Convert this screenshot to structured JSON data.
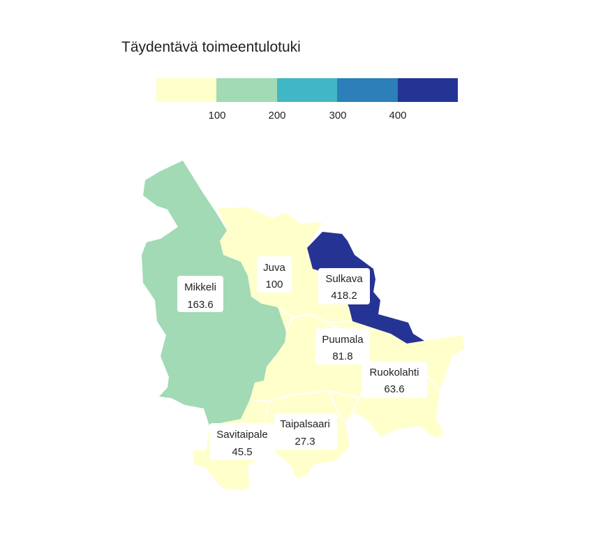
{
  "title": "Täydentävä toimeentulotuki",
  "legend": {
    "colors": [
      "#ffffcc",
      "#a1dab4",
      "#41b6c4",
      "#2c7fb8",
      "#253494"
    ],
    "ticks": [
      "100",
      "200",
      "300",
      "400"
    ]
  },
  "regions": [
    {
      "name": "Mikkeli",
      "value": "163.6",
      "color": "#a1dab4"
    },
    {
      "name": "Juva",
      "value": "100",
      "color": "#ffffcc"
    },
    {
      "name": "Sulkava",
      "value": "418.2",
      "color": "#253494"
    },
    {
      "name": "Puumala",
      "value": "81.8",
      "color": "#ffffcc"
    },
    {
      "name": "Ruokolahti",
      "value": "63.6",
      "color": "#ffffcc"
    },
    {
      "name": "Taipalsaari",
      "value": "27.3",
      "color": "#ffffcc"
    },
    {
      "name": "Savitaipale",
      "value": "45.5",
      "color": "#ffffcc"
    }
  ]
}
